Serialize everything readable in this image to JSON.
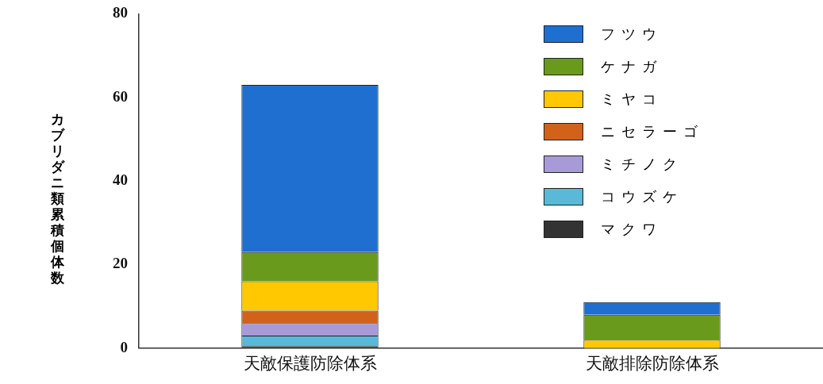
{
  "chart_data": {
    "type": "bar",
    "stacked": true,
    "ylabel": "カブリダニ類累積個体数",
    "categories": [
      "天敵保護防除体系",
      "天敵排除防除体系"
    ],
    "series": [
      {
        "name": "マクワ",
        "color": "#333333",
        "values": [
          0.5,
          0
        ]
      },
      {
        "name": "コウズケ",
        "color": "#5ab8d8",
        "values": [
          2.5,
          0
        ]
      },
      {
        "name": "ミチノク",
        "color": "#a89ad8",
        "values": [
          3,
          0
        ]
      },
      {
        "name": "ニセラーゴ",
        "color": "#d2621a",
        "values": [
          3,
          0
        ]
      },
      {
        "name": "ミヤコ",
        "color": "#ffc800",
        "values": [
          7,
          2
        ]
      },
      {
        "name": "ケナガ",
        "color": "#6a9a1c",
        "values": [
          7,
          6
        ]
      },
      {
        "name": "フツウ",
        "color": "#1f6fd0",
        "values": [
          40,
          3
        ]
      }
    ],
    "ylim": [
      0,
      80
    ],
    "yticks": [
      0,
      20,
      40,
      60,
      80
    ],
    "grid": false,
    "legend": "top right"
  }
}
